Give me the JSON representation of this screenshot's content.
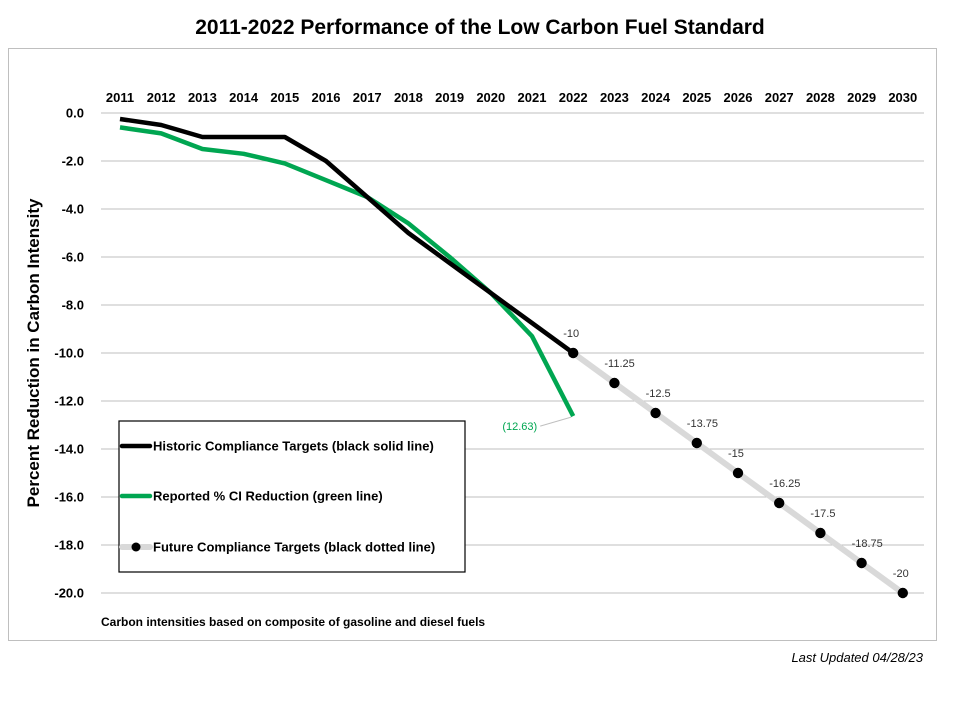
{
  "chart_data": {
    "type": "line",
    "title": "2011-2022 Performance of the Low Carbon Fuel Standard",
    "ylabel": "Percent Reduction in Carbon Intensity",
    "xlabel": "",
    "ylim": [
      -20,
      0
    ],
    "yticks": [
      "0.0",
      "-2.0",
      "-4.0",
      "-6.0",
      "-8.0",
      "-10.0",
      "-12.0",
      "-14.0",
      "-16.0",
      "-18.0",
      "-20.0"
    ],
    "x": [
      "2011",
      "2012",
      "2013",
      "2014",
      "2015",
      "2016",
      "2017",
      "2018",
      "2019",
      "2020",
      "2021",
      "2022",
      "2023",
      "2024",
      "2025",
      "2026",
      "2027",
      "2028",
      "2029",
      "2030"
    ],
    "x_axis_position": "top",
    "grid": true,
    "legend_position": "bottom-left",
    "series": [
      {
        "name": "Historic Compliance Targets (black solid line)",
        "color": "#000000",
        "x": [
          "2011",
          "2012",
          "2013",
          "2014",
          "2015",
          "2016",
          "2017",
          "2018",
          "2019",
          "2020",
          "2021",
          "2022"
        ],
        "values": [
          -0.25,
          -0.5,
          -1.0,
          -1.0,
          -1.0,
          -2.0,
          -3.5,
          -5.0,
          -6.25,
          -7.5,
          -8.75,
          -10.0
        ]
      },
      {
        "name": "Reported % CI Reduction (green line)",
        "color": "#00a651",
        "x": [
          "2011",
          "2012",
          "2013",
          "2014",
          "2015",
          "2016",
          "2017",
          "2018",
          "2019",
          "2020",
          "2021",
          "2022"
        ],
        "values": [
          -0.6,
          -0.85,
          -1.5,
          -1.7,
          -2.1,
          -2.8,
          -3.5,
          -4.6,
          -6.0,
          -7.5,
          -9.3,
          -12.63
        ]
      },
      {
        "name": "Future Compliance Targets (black dotted line)",
        "color": "#d9d9d9",
        "marker_color": "#000000",
        "x": [
          "2022",
          "2023",
          "2024",
          "2025",
          "2026",
          "2027",
          "2028",
          "2029",
          "2030"
        ],
        "values": [
          -10,
          -11.25,
          -12.5,
          -13.75,
          -15,
          -16.25,
          -17.5,
          -18.75,
          -20
        ]
      }
    ],
    "data_labels": [
      {
        "x": "2022",
        "text": "-10"
      },
      {
        "x": "2023",
        "text": "-11.25"
      },
      {
        "x": "2024",
        "text": "-12.5"
      },
      {
        "x": "2025",
        "text": "-13.75"
      },
      {
        "x": "2026",
        "text": "-15"
      },
      {
        "x": "2027",
        "text": "-16.25"
      },
      {
        "x": "2028",
        "text": "-17.5"
      },
      {
        "x": "2029",
        "text": "-18.75"
      },
      {
        "x": "2030",
        "text": "-20"
      }
    ],
    "green_end_label": "(12.63)",
    "footnote": "Carbon intensities based on composite of gasoline and diesel fuels"
  },
  "last_updated": "Last Updated 04/28/23"
}
